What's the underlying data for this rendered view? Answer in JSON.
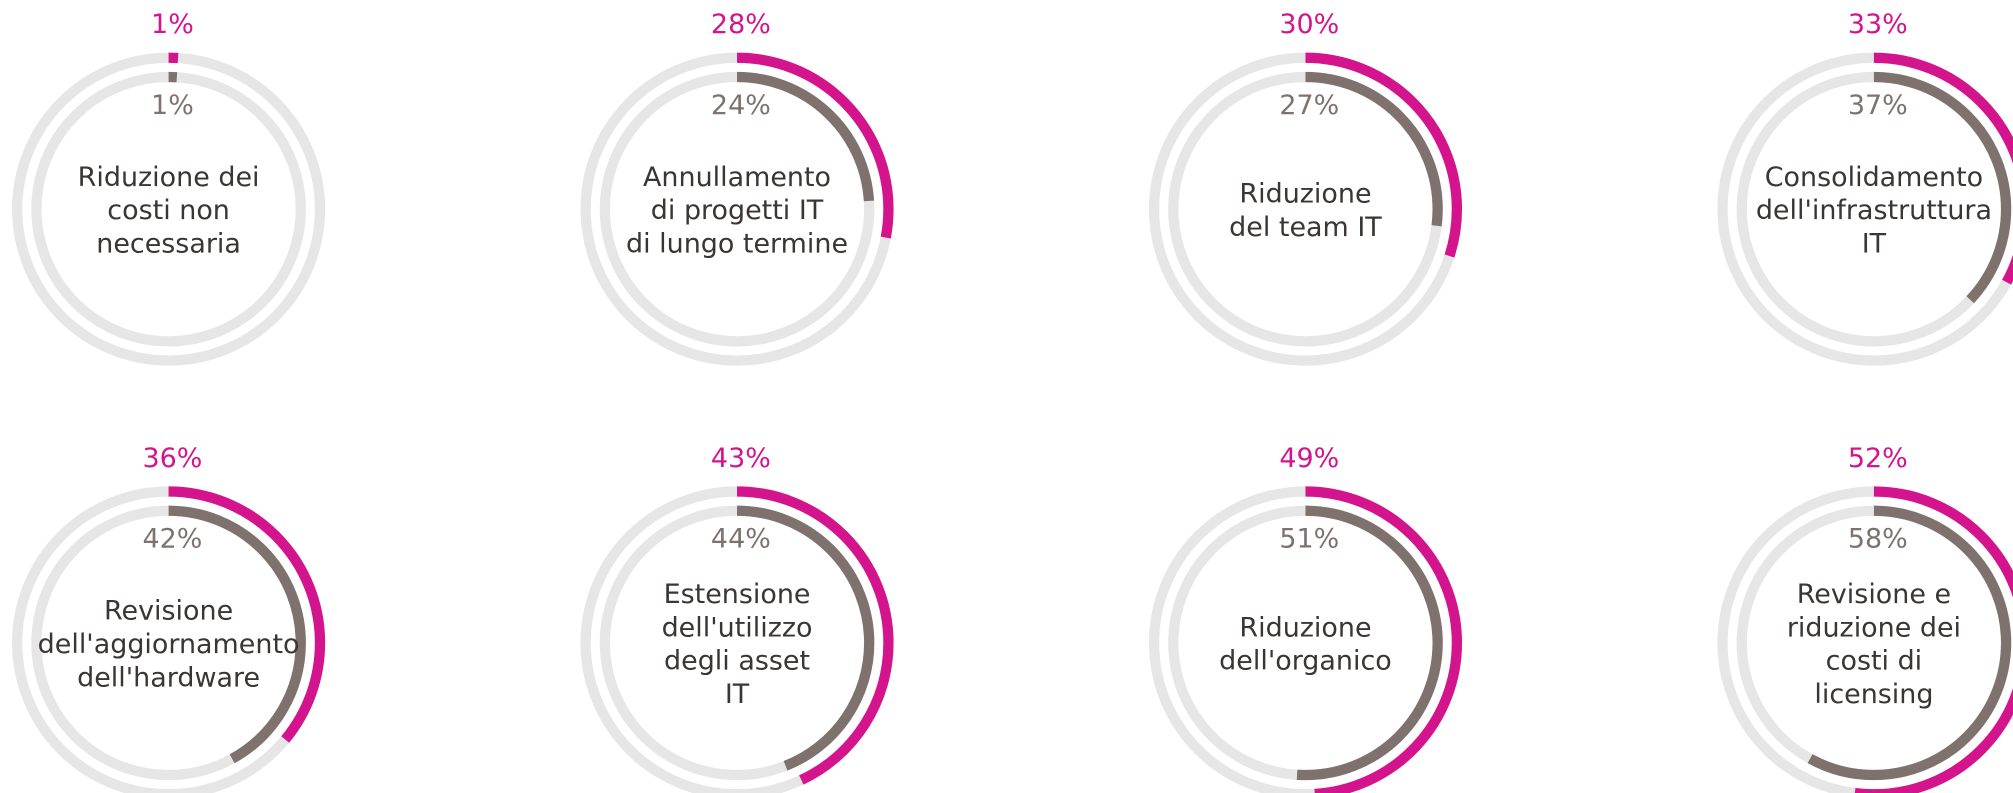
{
  "chart_data": [
    {
      "type": "radial",
      "title": [
        "Riduzione dei",
        "costi non",
        "necessaria"
      ],
      "values": [
        1,
        1
      ],
      "value_labels": [
        "1%",
        "1%"
      ],
      "colors": [
        "#d4148c",
        "#7f726e"
      ],
      "track_color": "#e6e6e6",
      "ylim": [
        0,
        100
      ]
    },
    {
      "type": "radial",
      "title": [
        "Annullamento",
        "di progetti IT",
        "di lungo termine"
      ],
      "values": [
        28,
        24
      ],
      "value_labels": [
        "28%",
        "24%"
      ],
      "colors": [
        "#d4148c",
        "#7f726e"
      ],
      "track_color": "#e6e6e6",
      "ylim": [
        0,
        100
      ]
    },
    {
      "type": "radial",
      "title": [
        "Riduzione",
        "del team IT"
      ],
      "values": [
        30,
        27
      ],
      "value_labels": [
        "30%",
        "27%"
      ],
      "colors": [
        "#d4148c",
        "#7f726e"
      ],
      "track_color": "#e6e6e6",
      "ylim": [
        0,
        100
      ]
    },
    {
      "type": "radial",
      "title": [
        "Consolidamento",
        "dell'infrastruttura",
        "IT"
      ],
      "values": [
        33,
        37
      ],
      "value_labels": [
        "33%",
        "37%"
      ],
      "colors": [
        "#d4148c",
        "#7f726e"
      ],
      "track_color": "#e6e6e6",
      "ylim": [
        0,
        100
      ]
    },
    {
      "type": "radial",
      "title": [
        "Revisione",
        "dell'aggiornamento",
        "dell'hardware"
      ],
      "values": [
        36,
        42
      ],
      "value_labels": [
        "36%",
        "42%"
      ],
      "colors": [
        "#d4148c",
        "#7f726e"
      ],
      "track_color": "#e6e6e6",
      "ylim": [
        0,
        100
      ]
    },
    {
      "type": "radial",
      "title": [
        "Estensione",
        "dell'utilizzo",
        "degli asset",
        "IT"
      ],
      "values": [
        43,
        44
      ],
      "value_labels": [
        "43%",
        "44%"
      ],
      "colors": [
        "#d4148c",
        "#7f726e"
      ],
      "track_color": "#e6e6e6",
      "ylim": [
        0,
        100
      ]
    },
    {
      "type": "radial",
      "title": [
        "Riduzione",
        "dell'organico"
      ],
      "values": [
        49,
        51
      ],
      "value_labels": [
        "49%",
        "51%"
      ],
      "colors": [
        "#d4148c",
        "#7f726e"
      ],
      "track_color": "#e6e6e6",
      "ylim": [
        0,
        100
      ]
    },
    {
      "type": "radial",
      "title": [
        "Revisione e",
        "riduzione dei",
        "costi di",
        "licensing"
      ],
      "values": [
        52,
        58
      ],
      "value_labels": [
        "52%",
        "58%"
      ],
      "colors": [
        "#d4148c",
        "#7f726e"
      ],
      "track_color": "#e6e6e6",
      "ylim": [
        0,
        100
      ]
    }
  ]
}
